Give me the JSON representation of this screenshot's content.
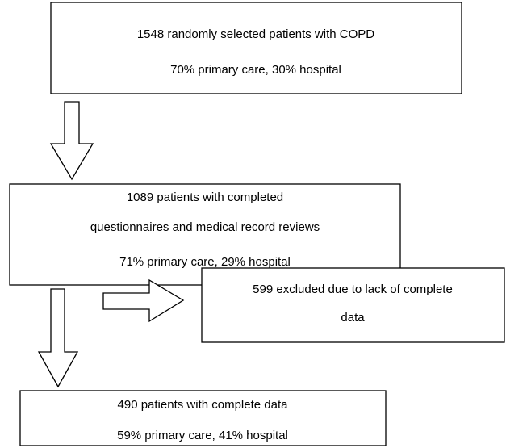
{
  "nodes": [
    {
      "lines": [
        "1548 randomly selected patients with COPD",
        "70% primary care, 30% hospital"
      ]
    },
    {
      "lines": [
        "1089 patients with completed",
        "questionnaires and medical record reviews",
        "71% primary care, 29% hospital"
      ]
    },
    {
      "lines": [
        "599 excluded due to lack of complete",
        "data"
      ]
    },
    {
      "lines": [
        "490 patients with complete data",
        "59% primary care, 41% hospital"
      ]
    }
  ]
}
